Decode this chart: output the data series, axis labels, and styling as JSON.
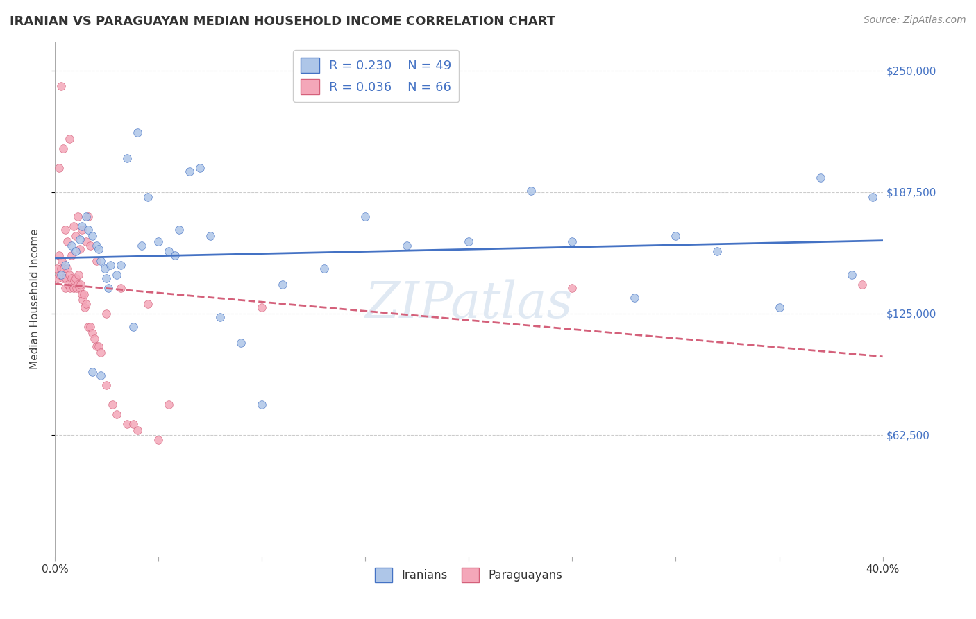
{
  "title": "IRANIAN VS PARAGUAYAN MEDIAN HOUSEHOLD INCOME CORRELATION CHART",
  "source": "Source: ZipAtlas.com",
  "ylabel": "Median Household Income",
  "yticks": [
    62500,
    125000,
    187500,
    250000
  ],
  "ytick_labels": [
    "$62,500",
    "$125,000",
    "$187,500",
    "$250,000"
  ],
  "watermark": "ZIPatlas",
  "legend_iranian_R": "R = 0.230",
  "legend_iranian_N": "N = 49",
  "legend_paraguayan_R": "R = 0.036",
  "legend_paraguayan_N": "N = 66",
  "iranian_color": "#aec6e8",
  "paraguayan_color": "#f4a7b9",
  "iranian_line_color": "#4472c4",
  "paraguayan_line_color": "#d4607a",
  "background_color": "#ffffff",
  "xmin": 0,
  "xmax": 40,
  "ymin": 0,
  "ymax": 265000,
  "iranian_x": [
    0.3,
    0.5,
    0.8,
    1.0,
    1.2,
    1.3,
    1.5,
    1.6,
    1.8,
    2.0,
    2.1,
    2.2,
    2.4,
    2.5,
    2.7,
    3.0,
    3.2,
    3.5,
    4.0,
    4.5,
    5.0,
    5.5,
    6.0,
    6.5,
    7.0,
    8.0,
    9.0,
    10.0,
    11.0,
    13.0,
    15.0,
    17.0,
    20.0,
    23.0,
    25.0,
    28.0,
    30.0,
    32.0,
    35.0,
    37.0,
    38.5,
    1.8,
    2.2,
    2.6,
    3.8,
    4.2,
    5.8,
    7.5,
    39.5
  ],
  "iranian_y": [
    145000,
    150000,
    160000,
    157000,
    163000,
    170000,
    175000,
    168000,
    165000,
    160000,
    158000,
    152000,
    148000,
    143000,
    150000,
    145000,
    150000,
    205000,
    218000,
    185000,
    162000,
    157000,
    168000,
    198000,
    200000,
    123000,
    110000,
    78000,
    140000,
    148000,
    175000,
    160000,
    162000,
    188000,
    162000,
    133000,
    165000,
    157000,
    128000,
    195000,
    145000,
    95000,
    93000,
    138000,
    118000,
    160000,
    155000,
    165000,
    185000
  ],
  "paraguayan_x": [
    0.1,
    0.15,
    0.2,
    0.25,
    0.3,
    0.35,
    0.4,
    0.45,
    0.5,
    0.55,
    0.6,
    0.65,
    0.7,
    0.75,
    0.8,
    0.85,
    0.9,
    0.95,
    1.0,
    1.05,
    1.1,
    1.15,
    1.2,
    1.25,
    1.3,
    1.35,
    1.4,
    1.45,
    1.5,
    1.6,
    1.7,
    1.8,
    1.9,
    2.0,
    2.1,
    2.2,
    2.5,
    2.8,
    3.0,
    3.5,
    4.0,
    5.0,
    0.3,
    0.5,
    0.7,
    0.9,
    1.1,
    1.3,
    1.5,
    1.7,
    0.2,
    0.4,
    0.6,
    0.8,
    1.0,
    1.2,
    1.6,
    2.0,
    2.5,
    3.2,
    4.5,
    3.8,
    5.5,
    39.0,
    25.0,
    10.0
  ],
  "paraguayan_y": [
    148000,
    143000,
    155000,
    145000,
    148000,
    152000,
    143000,
    148000,
    138000,
    143000,
    148000,
    140000,
    145000,
    138000,
    143000,
    140000,
    138000,
    142000,
    143000,
    138000,
    140000,
    145000,
    138000,
    140000,
    135000,
    132000,
    135000,
    128000,
    130000,
    118000,
    118000,
    115000,
    112000,
    108000,
    108000,
    105000,
    88000,
    78000,
    73000,
    68000,
    65000,
    60000,
    242000,
    168000,
    215000,
    170000,
    175000,
    168000,
    162000,
    160000,
    200000,
    210000,
    162000,
    155000,
    165000,
    158000,
    175000,
    152000,
    125000,
    138000,
    130000,
    68000,
    78000,
    140000,
    138000,
    128000
  ]
}
